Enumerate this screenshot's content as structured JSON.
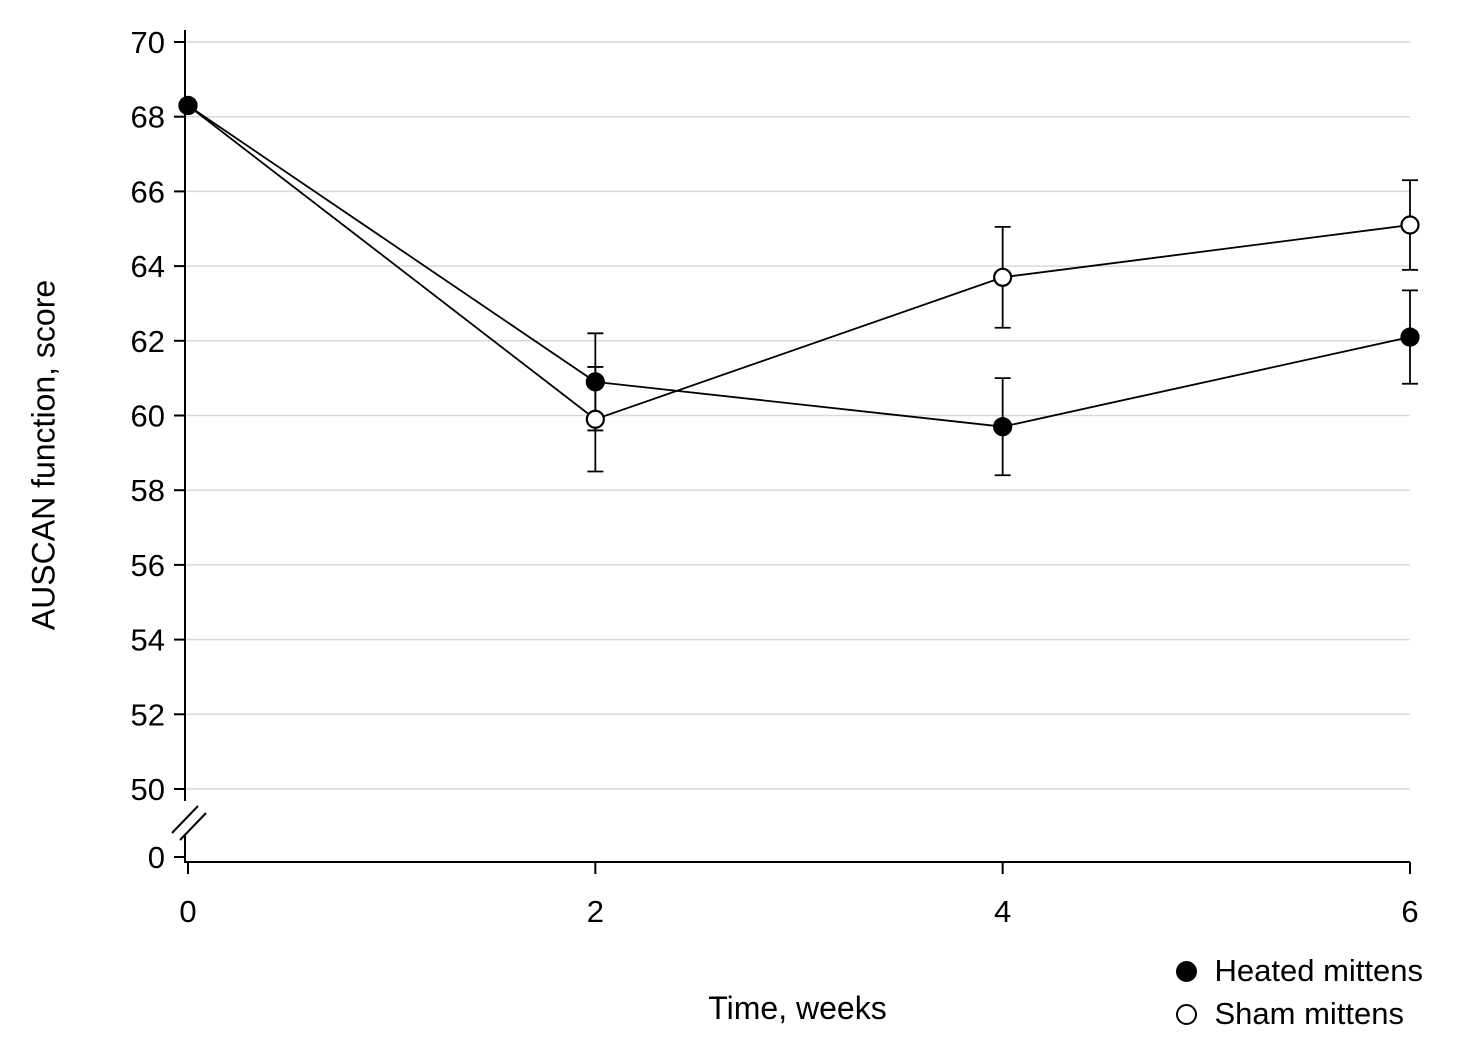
{
  "colors": {
    "line": "#000000",
    "grid": "#d9d9d9",
    "background": "#ffffff",
    "text": "#000000"
  },
  "chart_data": {
    "type": "line",
    "title": "",
    "xlabel": "Time, weeks",
    "ylabel": "AUSCAN function, score",
    "x": [
      0,
      2,
      4,
      6
    ],
    "xticks": [
      0,
      2,
      4,
      6
    ],
    "yticks": [
      50,
      52,
      54,
      56,
      58,
      60,
      62,
      64,
      66,
      68,
      70
    ],
    "ylim_display": [
      50,
      70
    ],
    "x_range": [
      0,
      6
    ],
    "axis_break_to_zero": true,
    "zero_tick_label": "0",
    "grid": "horizontal",
    "legend_position": "bottom-right",
    "series": [
      {
        "name": "Heated mittens",
        "marker": "filled",
        "values": [
          68.3,
          60.9,
          59.7,
          62.1
        ],
        "errors": [
          0,
          1.3,
          1.3,
          1.25
        ]
      },
      {
        "name": "Sham mittens",
        "marker": "open",
        "values": [
          68.3,
          59.9,
          63.7,
          65.1
        ],
        "errors": [
          0,
          1.4,
          1.35,
          1.2
        ]
      }
    ]
  }
}
